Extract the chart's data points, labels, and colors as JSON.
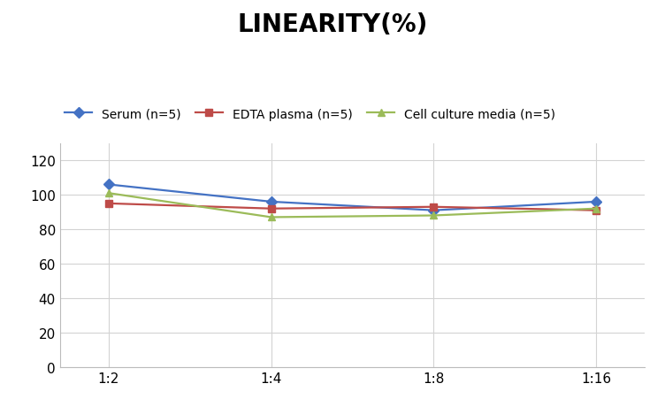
{
  "title": "LINEARITY(%)",
  "title_fontsize": 20,
  "title_fontweight": "bold",
  "x_labels": [
    "1:2",
    "1:4",
    "1:8",
    "1:16"
  ],
  "x_values": [
    0,
    1,
    2,
    3
  ],
  "series": [
    {
      "name": "Serum (n=5)",
      "values": [
        106,
        96,
        91,
        96
      ],
      "color": "#4472C4",
      "marker": "D",
      "markersize": 6,
      "linewidth": 1.6
    },
    {
      "name": "EDTA plasma (n=5)",
      "values": [
        95,
        92,
        93,
        91
      ],
      "color": "#BE4B48",
      "marker": "s",
      "markersize": 6,
      "linewidth": 1.6
    },
    {
      "name": "Cell culture media (n=5)",
      "values": [
        101,
        87,
        88,
        92
      ],
      "color": "#9BBB59",
      "marker": "^",
      "markersize": 6,
      "linewidth": 1.6
    }
  ],
  "ylim": [
    0,
    130
  ],
  "yticks": [
    0,
    20,
    40,
    60,
    80,
    100,
    120
  ],
  "grid_color": "#D3D3D3",
  "grid_linewidth": 0.8,
  "background_color": "#FFFFFF",
  "legend_fontsize": 10,
  "tick_fontsize": 11
}
